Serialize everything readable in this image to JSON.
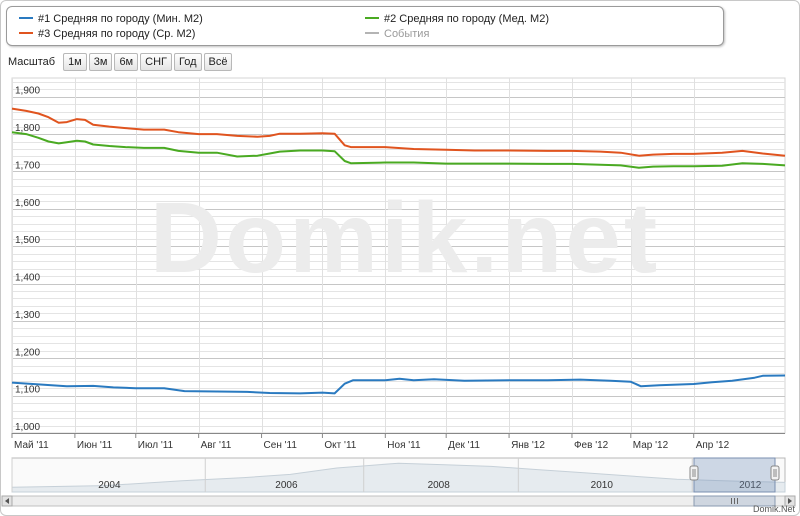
{
  "legend": {
    "items": [
      {
        "label": "#1 Средняя по городу (Мин. М2)",
        "color": "#2a7ac0"
      },
      {
        "label": "#2 Средняя по городу (Мед. М2)",
        "color": "#4aaa22"
      },
      {
        "label": "#3 Средняя по городу (Ср. М2)",
        "color": "#e0541f"
      },
      {
        "label": "События",
        "color": "#b4b4b4"
      }
    ]
  },
  "zoom": {
    "label": "Масштаб",
    "buttons": [
      "1м",
      "3м",
      "6м",
      "СНГ",
      "Год",
      "Всё"
    ]
  },
  "watermark": "Domik.net",
  "credit": "Domik.Net",
  "navigator": {
    "years": [
      "2004",
      "2006",
      "2008",
      "2010",
      "2012"
    ]
  },
  "chart_data": {
    "type": "line",
    "title": "",
    "xlabel": "",
    "ylabel": "",
    "ylim": [
      1000,
      1950
    ],
    "grid": true,
    "legend_position": "top",
    "yticks": [
      1000,
      1100,
      1200,
      1300,
      1400,
      1500,
      1600,
      1700,
      1800,
      1900
    ],
    "ytick_labels": [
      "1,000",
      "1,100",
      "1,200",
      "1,300",
      "1,400",
      "1,500",
      "1,600",
      "1,700",
      "1,800",
      "1,900"
    ],
    "xticks": [
      "Май '11",
      "Июн '11",
      "Июл '11",
      "Авг '11",
      "Сен '11",
      "Окт '11",
      "Ноя '11",
      "Дек '11",
      "Янв '12",
      "Фев '12",
      "Мар '12",
      "Апр '12"
    ],
    "x_range": [
      "2011-05-01",
      "2012-05-16"
    ],
    "series": [
      {
        "name": "#3 Средняя по городу (Ср. М2)",
        "color": "#e0541f",
        "points": [
          [
            "2011-05-01",
            1868
          ],
          [
            "2011-05-08",
            1862
          ],
          [
            "2011-05-14",
            1855
          ],
          [
            "2011-05-19",
            1845
          ],
          [
            "2011-05-24",
            1830
          ],
          [
            "2011-05-28",
            1832
          ],
          [
            "2011-06-02",
            1840
          ],
          [
            "2011-06-06",
            1838
          ],
          [
            "2011-06-10",
            1825
          ],
          [
            "2011-06-18",
            1820
          ],
          [
            "2011-06-26",
            1816
          ],
          [
            "2011-07-05",
            1812
          ],
          [
            "2011-07-15",
            1812
          ],
          [
            "2011-07-22",
            1805
          ],
          [
            "2011-08-01",
            1800
          ],
          [
            "2011-08-10",
            1800
          ],
          [
            "2011-08-20",
            1795
          ],
          [
            "2011-08-30",
            1793
          ],
          [
            "2011-09-05",
            1795
          ],
          [
            "2011-09-10",
            1801
          ],
          [
            "2011-09-20",
            1801
          ],
          [
            "2011-10-01",
            1802
          ],
          [
            "2011-10-07",
            1801
          ],
          [
            "2011-10-12",
            1770
          ],
          [
            "2011-10-15",
            1765
          ],
          [
            "2011-11-01",
            1765
          ],
          [
            "2011-11-15",
            1760
          ],
          [
            "2011-12-01",
            1758
          ],
          [
            "2011-12-15",
            1756
          ],
          [
            "2012-01-01",
            1756
          ],
          [
            "2012-01-20",
            1755
          ],
          [
            "2012-02-01",
            1755
          ],
          [
            "2012-02-15",
            1753
          ],
          [
            "2012-02-25",
            1750
          ],
          [
            "2012-03-05",
            1742
          ],
          [
            "2012-03-12",
            1745
          ],
          [
            "2012-03-22",
            1747
          ],
          [
            "2012-04-01",
            1747
          ],
          [
            "2012-04-15",
            1750
          ],
          [
            "2012-04-25",
            1755
          ],
          [
            "2012-05-05",
            1748
          ],
          [
            "2012-05-16",
            1742
          ]
        ]
      },
      {
        "name": "#2 Средняя по городу (Мед. М2)",
        "color": "#4aaa22",
        "points": [
          [
            "2011-05-01",
            1805
          ],
          [
            "2011-05-08",
            1800
          ],
          [
            "2011-05-14",
            1790
          ],
          [
            "2011-05-19",
            1780
          ],
          [
            "2011-05-24",
            1775
          ],
          [
            "2011-05-28",
            1778
          ],
          [
            "2011-06-02",
            1782
          ],
          [
            "2011-06-06",
            1780
          ],
          [
            "2011-06-10",
            1772
          ],
          [
            "2011-06-18",
            1768
          ],
          [
            "2011-06-26",
            1765
          ],
          [
            "2011-07-05",
            1763
          ],
          [
            "2011-07-15",
            1763
          ],
          [
            "2011-07-22",
            1755
          ],
          [
            "2011-08-01",
            1750
          ],
          [
            "2011-08-10",
            1750
          ],
          [
            "2011-08-20",
            1740
          ],
          [
            "2011-08-30",
            1742
          ],
          [
            "2011-09-05",
            1748
          ],
          [
            "2011-09-10",
            1753
          ],
          [
            "2011-09-20",
            1756
          ],
          [
            "2011-10-01",
            1756
          ],
          [
            "2011-10-07",
            1754
          ],
          [
            "2011-10-12",
            1728
          ],
          [
            "2011-10-15",
            1722
          ],
          [
            "2011-11-01",
            1724
          ],
          [
            "2011-11-15",
            1724
          ],
          [
            "2011-12-01",
            1721
          ],
          [
            "2011-12-15",
            1721
          ],
          [
            "2012-01-01",
            1721
          ],
          [
            "2012-01-20",
            1720
          ],
          [
            "2012-02-01",
            1720
          ],
          [
            "2012-02-15",
            1718
          ],
          [
            "2012-02-25",
            1716
          ],
          [
            "2012-03-05",
            1710
          ],
          [
            "2012-03-12",
            1713
          ],
          [
            "2012-03-22",
            1714
          ],
          [
            "2012-04-01",
            1714
          ],
          [
            "2012-04-15",
            1715
          ],
          [
            "2012-04-25",
            1722
          ],
          [
            "2012-05-05",
            1720
          ],
          [
            "2012-05-16",
            1716
          ]
        ]
      },
      {
        "name": "#1 Средняя по городу (Мин. М2)",
        "color": "#2a7ac0",
        "points": [
          [
            "2011-05-01",
            1135
          ],
          [
            "2011-05-14",
            1130
          ],
          [
            "2011-05-28",
            1125
          ],
          [
            "2011-06-10",
            1126
          ],
          [
            "2011-06-20",
            1122
          ],
          [
            "2011-07-01",
            1120
          ],
          [
            "2011-07-15",
            1120
          ],
          [
            "2011-07-25",
            1112
          ],
          [
            "2011-08-10",
            1111
          ],
          [
            "2011-08-25",
            1110
          ],
          [
            "2011-09-05",
            1107
          ],
          [
            "2011-09-20",
            1106
          ],
          [
            "2011-10-01",
            1108
          ],
          [
            "2011-10-07",
            1106
          ],
          [
            "2011-10-12",
            1132
          ],
          [
            "2011-10-16",
            1141
          ],
          [
            "2011-11-01",
            1141
          ],
          [
            "2011-11-08",
            1145
          ],
          [
            "2011-11-15",
            1141
          ],
          [
            "2011-11-25",
            1144
          ],
          [
            "2011-12-10",
            1140
          ],
          [
            "2012-01-01",
            1141
          ],
          [
            "2012-01-20",
            1141
          ],
          [
            "2012-02-05",
            1143
          ],
          [
            "2012-02-20",
            1140
          ],
          [
            "2012-03-01",
            1137
          ],
          [
            "2012-03-06",
            1125
          ],
          [
            "2012-03-15",
            1128
          ],
          [
            "2012-04-01",
            1131
          ],
          [
            "2012-04-10",
            1136
          ],
          [
            "2012-04-20",
            1140
          ],
          [
            "2012-05-01",
            1148
          ],
          [
            "2012-05-05",
            1153
          ],
          [
            "2012-05-16",
            1154
          ]
        ]
      }
    ]
  }
}
